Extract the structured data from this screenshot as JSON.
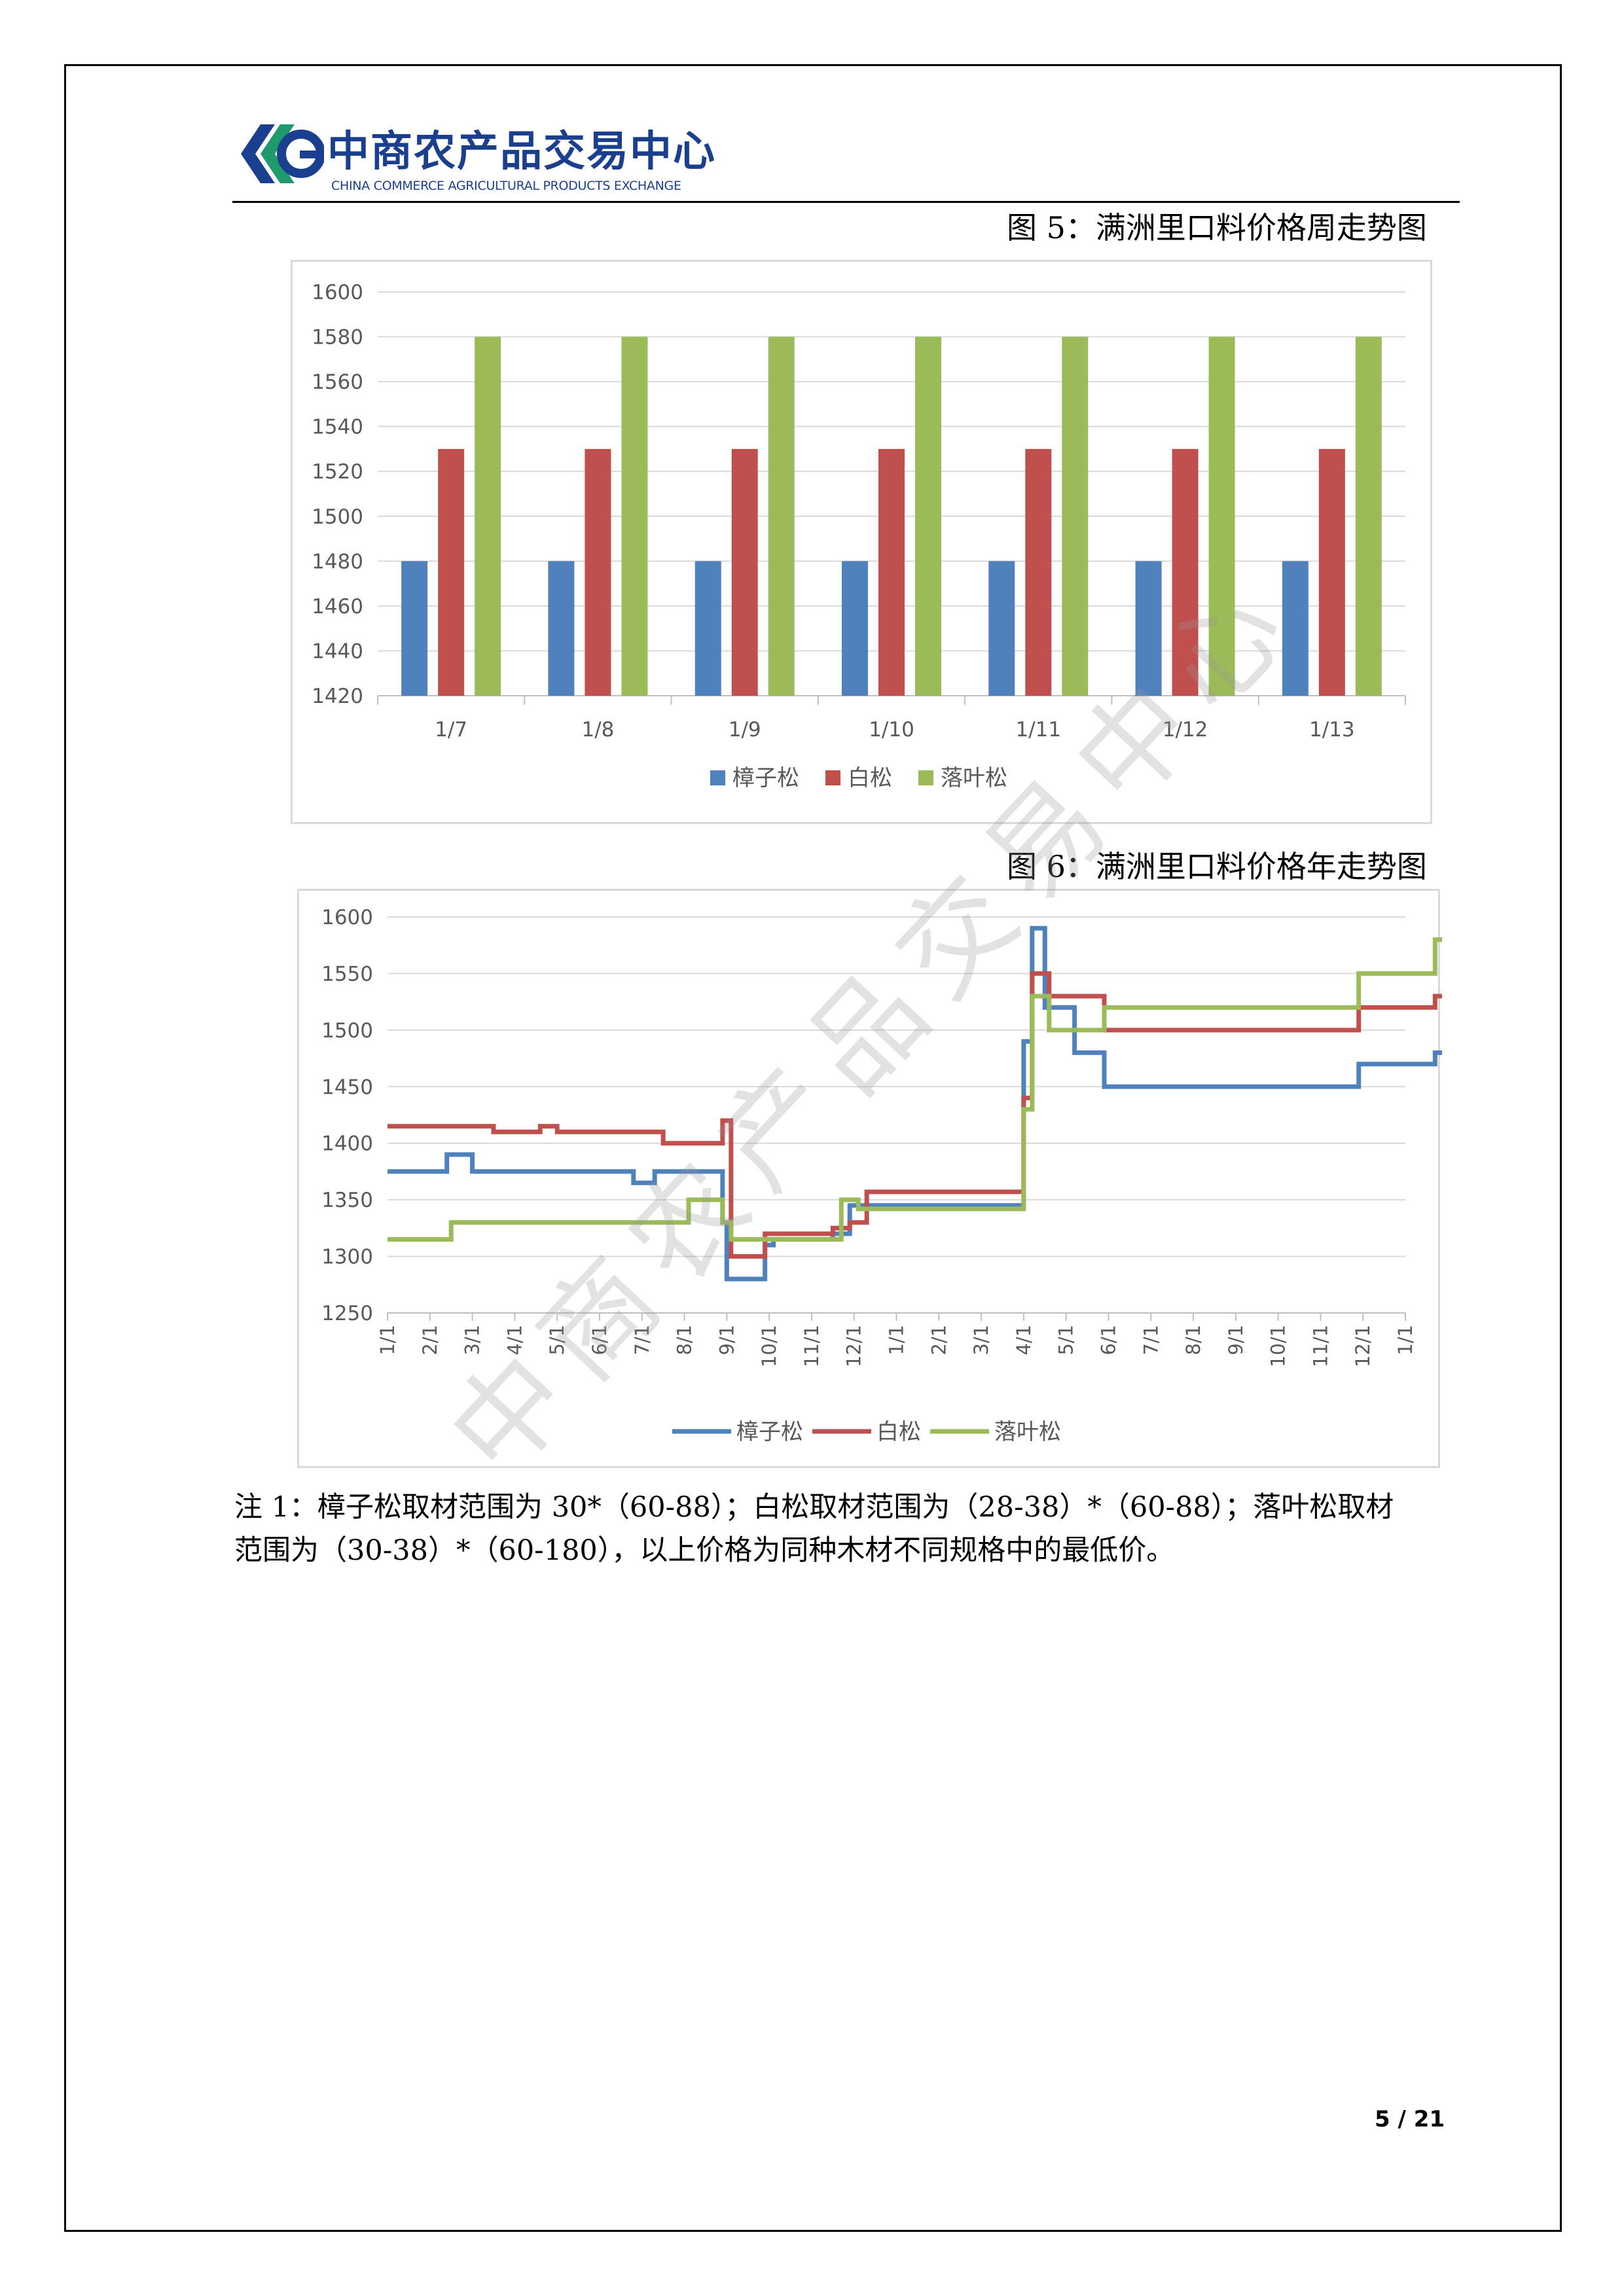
{
  "header": {
    "logo_cn": "中商农产品交易中心",
    "logo_en": "CHINA COMMERCE AGRICULTURAL PRODUCTS EXCHANGE",
    "brand_color": "#1b3f8f",
    "brand_accent": "#1e9a6c"
  },
  "figure5": {
    "title": "图 5：满洲里口料价格周走势图"
  },
  "figure6": {
    "title": "图 6：满洲里口料价格年走势图"
  },
  "watermark": "中商农产品交易中心",
  "note": {
    "line1": "注 1：樟子松取材范围为 30*（60-88）；白松取材范围为（28-38）*（60-88）；落叶松取材",
    "line2": "范围为（30-38）*（60-180），以上价格为同种木材不同规格中的最低价。"
  },
  "page": {
    "current": "5",
    "separator": "/",
    "total": "21"
  },
  "chart_data": [
    {
      "type": "bar",
      "categories": [
        "1/7",
        "1/8",
        "1/9",
        "1/10",
        "1/11",
        "1/12",
        "1/13"
      ],
      "series": [
        {
          "name": "樟子松",
          "color": "#4f81bd",
          "values": [
            1480,
            1480,
            1480,
            1480,
            1480,
            1480,
            1480
          ]
        },
        {
          "name": "白松",
          "color": "#c0504d",
          "values": [
            1530,
            1530,
            1530,
            1530,
            1530,
            1530,
            1530
          ]
        },
        {
          "name": "落叶松",
          "color": "#9bbb59",
          "values": [
            1580,
            1580,
            1580,
            1580,
            1580,
            1580,
            1580
          ]
        }
      ],
      "ylim": [
        1420,
        1600
      ],
      "yticks": [
        "1420",
        "1440",
        "1460",
        "1480",
        "1500",
        "1520",
        "1540",
        "1560",
        "1580",
        "1600"
      ],
      "grid": true,
      "legend": "bottom"
    },
    {
      "type": "line",
      "step": true,
      "xticks": [
        "1/1",
        "2/1",
        "3/1",
        "4/1",
        "5/1",
        "6/1",
        "7/1",
        "8/1",
        "9/1",
        "10/1",
        "11/1",
        "12/1",
        "1/1",
        "2/1",
        "3/1",
        "4/1",
        "5/1",
        "6/1",
        "7/1",
        "8/1",
        "9/1",
        "10/1",
        "11/1",
        "12/1",
        "1/1"
      ],
      "ylim": [
        1250,
        1600
      ],
      "yticks": [
        "1250",
        "1300",
        "1350",
        "1400",
        "1450",
        "1500",
        "1550",
        "1600"
      ],
      "grid": true,
      "legend": "bottom",
      "series": [
        {
          "name": "樟子松",
          "color": "#4f81bd",
          "points": [
            [
              0,
              1375
            ],
            [
              1.4,
              1390
            ],
            [
              2,
              1375
            ],
            [
              5.8,
              1365
            ],
            [
              6.3,
              1375
            ],
            [
              7.9,
              1330
            ],
            [
              8.0,
              1280
            ],
            [
              8.9,
              1310
            ],
            [
              9.1,
              1315
            ],
            [
              10.5,
              1320
            ],
            [
              10.9,
              1345
            ],
            [
              15.0,
              1490
            ],
            [
              15.2,
              1590
            ],
            [
              15.5,
              1520
            ],
            [
              16.2,
              1480
            ],
            [
              16.9,
              1450
            ],
            [
              22.9,
              1470
            ],
            [
              24.7,
              1480
            ],
            [
              24.9,
              1480
            ]
          ]
        },
        {
          "name": "白松",
          "color": "#c0504d",
          "points": [
            [
              0,
              1415
            ],
            [
              2.5,
              1410
            ],
            [
              3.6,
              1415
            ],
            [
              4.0,
              1410
            ],
            [
              6.5,
              1400
            ],
            [
              7.9,
              1420
            ],
            [
              8.1,
              1310
            ],
            [
              8.1,
              1300
            ],
            [
              8.9,
              1320
            ],
            [
              10.5,
              1325
            ],
            [
              10.9,
              1330
            ],
            [
              11.3,
              1357
            ],
            [
              15.0,
              1440
            ],
            [
              15.2,
              1550
            ],
            [
              15.6,
              1530
            ],
            [
              16.9,
              1500
            ],
            [
              22.9,
              1520
            ],
            [
              24.7,
              1530
            ],
            [
              24.9,
              1530
            ]
          ]
        },
        {
          "name": "落叶松",
          "color": "#9bbb59",
          "points": [
            [
              0,
              1315
            ],
            [
              1.5,
              1330
            ],
            [
              7.1,
              1350
            ],
            [
              7.9,
              1330
            ],
            [
              8.1,
              1315
            ],
            [
              10.5,
              1315
            ],
            [
              10.7,
              1350
            ],
            [
              11.1,
              1342
            ],
            [
              15.0,
              1430
            ],
            [
              15.2,
              1530
            ],
            [
              15.6,
              1500
            ],
            [
              16.9,
              1520
            ],
            [
              22.9,
              1550
            ],
            [
              24.7,
              1580
            ],
            [
              24.9,
              1580
            ]
          ]
        }
      ]
    }
  ]
}
